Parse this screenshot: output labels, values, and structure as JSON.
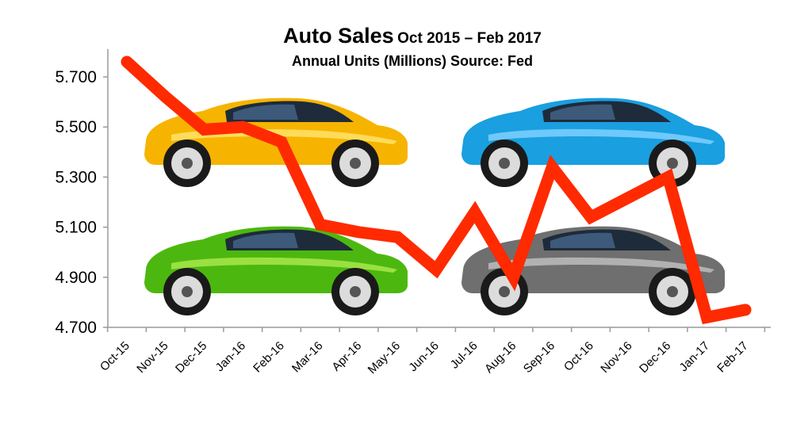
{
  "chart_data": {
    "type": "line",
    "title": "Auto Sales",
    "title_range": "Oct 2015 – Feb 2017",
    "subtitle": "Annual Units (Millions) Source: Fed",
    "categories": [
      "Oct-15",
      "Nov-15",
      "Dec-15",
      "Jan-16",
      "Feb-16",
      "Mar-16",
      "Apr-16",
      "May-16",
      "Jun-16",
      "Jul-16",
      "Aug-16",
      "Sep-16",
      "Oct-16",
      "Nov-16",
      "Dec-16",
      "Jan-17",
      "Feb-17"
    ],
    "series": [
      {
        "values": [
          5.76,
          5.62,
          5.49,
          5.5,
          5.44,
          5.11,
          5.08,
          5.06,
          4.93,
          5.16,
          4.9,
          5.34,
          5.14,
          5.22,
          5.3,
          4.74,
          4.77
        ],
        "color": "#ff2a00"
      }
    ],
    "ylim": [
      4.7,
      5.8
    ],
    "yticks": [
      "4.700",
      "4.900",
      "5.100",
      "5.300",
      "5.500",
      "5.700"
    ],
    "ytick_values": [
      4.7,
      4.9,
      5.1,
      5.3,
      5.5,
      5.7
    ],
    "grid": false,
    "legend": "none",
    "decorations": {
      "car_colors": [
        {
          "body": "#f6b400",
          "light": "#ffe36a",
          "name": "yellow-car"
        },
        {
          "body": "#1a9fe0",
          "light": "#7fd0ff",
          "name": "blue-car"
        },
        {
          "body": "#4cb80f",
          "light": "#a9e64a",
          "name": "green-car"
        },
        {
          "body": "#6f6f6f",
          "light": "#bdbdbd",
          "name": "gray-car"
        }
      ]
    }
  }
}
